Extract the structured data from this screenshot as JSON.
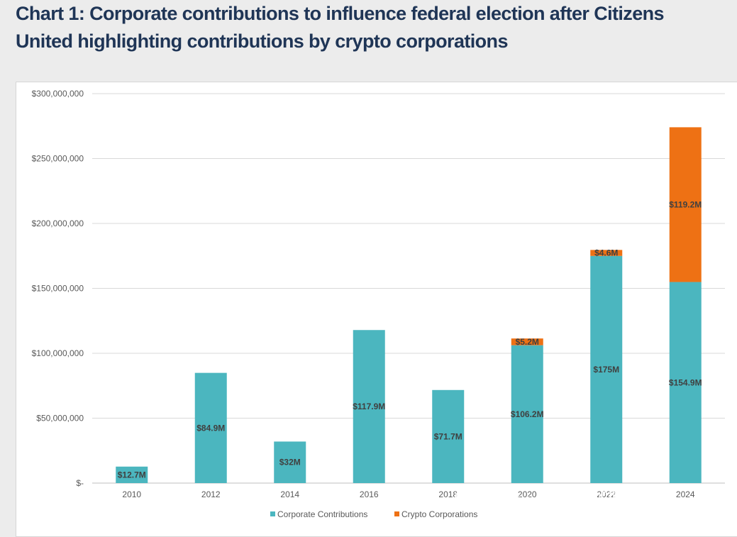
{
  "title_line1": "Chart 1: Corporate contributions to influence federal election after Citizens",
  "title_line2": "United highlighting contributions by crypto corporations",
  "chart_data": {
    "type": "bar",
    "stacked": true,
    "categories": [
      "2010",
      "2012",
      "2014",
      "2016",
      "2018",
      "2020",
      "2022",
      "2024"
    ],
    "series": [
      {
        "name": "Corporate Contributions",
        "color": "#4bb6bf",
        "values": [
          12700000,
          84900000,
          32000000,
          117900000,
          71700000,
          106200000,
          175000000,
          154900000
        ],
        "labels": [
          "$12.7M",
          "$84.9M",
          "$32M",
          "$117.9M",
          "$71.7M",
          "$106.2M",
          "$175M",
          "$154.9M"
        ]
      },
      {
        "name": "Crypto Corporations",
        "color": "#ee7114",
        "values": [
          0,
          0,
          0,
          0,
          0,
          5200000,
          4600000,
          119200000
        ],
        "labels": [
          "",
          "",
          "",
          "",
          "",
          "$5.2M",
          "$4.6M",
          "$119.2M"
        ]
      }
    ],
    "ylim": [
      0,
      300000000
    ],
    "yticks": [
      0,
      50000000,
      100000000,
      150000000,
      200000000,
      250000000,
      300000000
    ],
    "ytick_labels": [
      "$-",
      "$50,000,000",
      "$100,000,000",
      "$150,000,000",
      "$200,000,000",
      "$250,000,000",
      "$300,000,000"
    ],
    "grid": true,
    "legend_position": "bottom-center"
  },
  "watermark": {
    "line1": "公众号 · C Labs 加密观察",
    "line2": "@Demir C Labs"
  }
}
